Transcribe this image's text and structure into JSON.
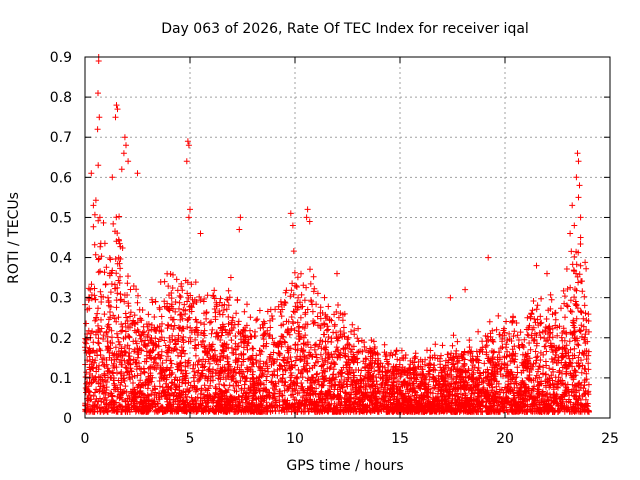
{
  "chart_data": {
    "type": "scatter",
    "title": "Day 063 of 2026, Rate Of TEC Index for receiver iqal",
    "xlabel": "GPS time / hours",
    "ylabel": "ROTI / TECUs",
    "xlim": [
      0,
      25
    ],
    "ylim": [
      0,
      0.9
    ],
    "xticks": [
      "0",
      "5",
      "10",
      "15",
      "20",
      "25"
    ],
    "yticks": [
      "0",
      "0.1",
      "0.2",
      "0.3",
      "0.4",
      "0.5",
      "0.6",
      "0.7",
      "0.8",
      "0.9"
    ],
    "grid": true,
    "marker": "+",
    "color": "#ff0000",
    "envelope_hours": [
      0,
      0.25,
      0.5,
      0.7,
      1.0,
      1.3,
      1.6,
      2.0,
      2.5,
      3.0,
      3.5,
      4.0,
      4.5,
      5.0,
      5.5,
      6.0,
      6.5,
      7.0,
      7.5,
      8.0,
      8.5,
      9.0,
      9.5,
      10.0,
      10.5,
      11.0,
      11.5,
      12.0,
      12.5,
      13.0,
      13.5,
      14.0,
      14.5,
      15.0,
      15.5,
      16.0,
      16.5,
      17.0,
      17.5,
      18.0,
      18.5,
      19.0,
      19.5,
      20.0,
      20.5,
      21.0,
      21.5,
      22.0,
      22.5,
      23.0,
      23.3,
      23.6,
      24.0
    ],
    "envelope_roti": [
      0.3,
      0.45,
      0.6,
      0.65,
      0.45,
      0.5,
      0.55,
      0.4,
      0.35,
      0.3,
      0.35,
      0.4,
      0.33,
      0.4,
      0.3,
      0.35,
      0.32,
      0.35,
      0.3,
      0.25,
      0.28,
      0.3,
      0.35,
      0.42,
      0.4,
      0.35,
      0.3,
      0.32,
      0.25,
      0.22,
      0.2,
      0.18,
      0.18,
      0.17,
      0.16,
      0.15,
      0.18,
      0.17,
      0.22,
      0.18,
      0.2,
      0.22,
      0.25,
      0.28,
      0.25,
      0.28,
      0.3,
      0.32,
      0.3,
      0.38,
      0.45,
      0.48,
      0.3
    ],
    "peaks": [
      {
        "x": 0.65,
        "y": 0.89
      },
      {
        "x": 0.65,
        "y": 0.9
      },
      {
        "x": 0.62,
        "y": 0.81
      },
      {
        "x": 0.68,
        "y": 0.75
      },
      {
        "x": 0.6,
        "y": 0.72
      },
      {
        "x": 0.63,
        "y": 0.63
      },
      {
        "x": 0.3,
        "y": 0.61
      },
      {
        "x": 0.4,
        "y": 0.53
      },
      {
        "x": 1.5,
        "y": 0.78
      },
      {
        "x": 1.55,
        "y": 0.77
      },
      {
        "x": 1.45,
        "y": 0.75
      },
      {
        "x": 1.9,
        "y": 0.7
      },
      {
        "x": 1.95,
        "y": 0.68
      },
      {
        "x": 1.85,
        "y": 0.66
      },
      {
        "x": 2.05,
        "y": 0.64
      },
      {
        "x": 1.75,
        "y": 0.62
      },
      {
        "x": 2.5,
        "y": 0.61
      },
      {
        "x": 1.3,
        "y": 0.6
      },
      {
        "x": 4.9,
        "y": 0.69
      },
      {
        "x": 4.95,
        "y": 0.68
      },
      {
        "x": 4.85,
        "y": 0.64
      },
      {
        "x": 5.0,
        "y": 0.52
      },
      {
        "x": 4.95,
        "y": 0.5
      },
      {
        "x": 5.5,
        "y": 0.46
      },
      {
        "x": 7.4,
        "y": 0.5
      },
      {
        "x": 7.35,
        "y": 0.47
      },
      {
        "x": 10.6,
        "y": 0.52
      },
      {
        "x": 10.55,
        "y": 0.5
      },
      {
        "x": 10.7,
        "y": 0.49
      },
      {
        "x": 9.8,
        "y": 0.51
      },
      {
        "x": 9.9,
        "y": 0.48
      },
      {
        "x": 23.45,
        "y": 0.66
      },
      {
        "x": 23.5,
        "y": 0.64
      },
      {
        "x": 23.4,
        "y": 0.6
      },
      {
        "x": 23.55,
        "y": 0.58
      },
      {
        "x": 23.5,
        "y": 0.55
      },
      {
        "x": 23.2,
        "y": 0.53
      },
      {
        "x": 23.6,
        "y": 0.5
      },
      {
        "x": 23.3,
        "y": 0.48
      },
      {
        "x": 23.1,
        "y": 0.46
      },
      {
        "x": 23.6,
        "y": 0.45
      },
      {
        "x": 19.2,
        "y": 0.4
      },
      {
        "x": 21.5,
        "y": 0.38
      },
      {
        "x": 22.0,
        "y": 0.36
      },
      {
        "x": 17.4,
        "y": 0.3
      },
      {
        "x": 18.1,
        "y": 0.32
      },
      {
        "x": 12.0,
        "y": 0.36
      }
    ]
  }
}
